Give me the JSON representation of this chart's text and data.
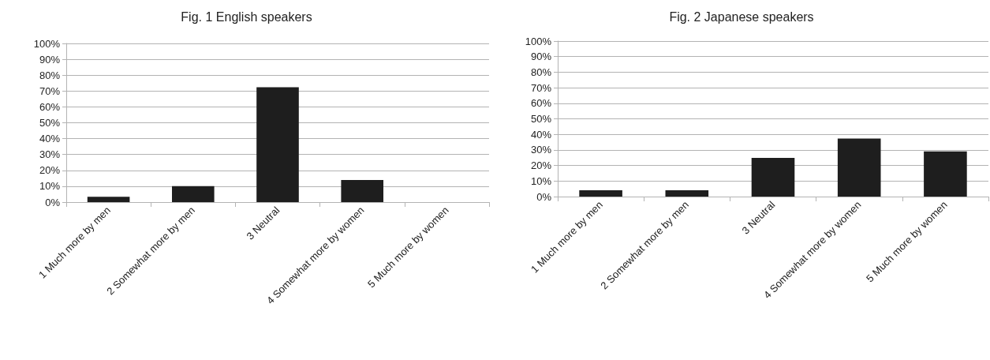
{
  "chart_data": [
    {
      "type": "bar",
      "title": "Fig. 1 English speakers",
      "categories": [
        "1 Much more by men",
        "2 Somewhat more by men",
        "3 Neutral",
        "4 Somewhat more by women",
        "5 Much more by women"
      ],
      "values": [
        3.4,
        10.1,
        72.4,
        13.9,
        0
      ],
      "color": "#1e1e1e",
      "ylim": [
        0,
        100
      ],
      "yticks": [
        {
          "value": 0,
          "label": "0%"
        },
        {
          "value": 10,
          "label": "10%"
        },
        {
          "value": 20,
          "label": "20%"
        },
        {
          "value": 30,
          "label": "30%"
        },
        {
          "value": 40,
          "label": "40%"
        },
        {
          "value": 50,
          "label": "50%"
        },
        {
          "value": 60,
          "label": "60%"
        },
        {
          "value": 70,
          "label": "70%"
        },
        {
          "value": 80,
          "label": "80%"
        },
        {
          "value": 90,
          "label": "90%"
        },
        {
          "value": 100,
          "label": "100%"
        }
      ],
      "grid": "y"
    },
    {
      "type": "bar",
      "title": "Fig. 2 Japanese speakers",
      "categories": [
        "1 Much more by men",
        "2 Somewhat more by men",
        "3 Neutral",
        "4 Somewhat more by women",
        "5 Much more by women"
      ],
      "values": [
        4.1,
        4.1,
        24.9,
        37.3,
        29.0
      ],
      "color": "#1e1e1e",
      "ylim": [
        0,
        100
      ],
      "yticks": [
        {
          "value": 0,
          "label": "0%"
        },
        {
          "value": 10,
          "label": "10%"
        },
        {
          "value": 20,
          "label": "20%"
        },
        {
          "value": 30,
          "label": "30%"
        },
        {
          "value": 40,
          "label": "40%"
        },
        {
          "value": 50,
          "label": "50%"
        },
        {
          "value": 60,
          "label": "60%"
        },
        {
          "value": 70,
          "label": "70%"
        },
        {
          "value": 80,
          "label": "80%"
        },
        {
          "value": 90,
          "label": "90%"
        },
        {
          "value": 100,
          "label": "100%"
        }
      ],
      "grid": "y"
    }
  ]
}
